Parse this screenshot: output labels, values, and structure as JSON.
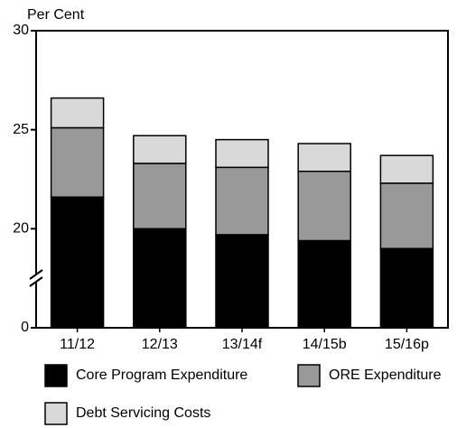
{
  "chart_data": {
    "type": "stacked_bar",
    "y_label": "Per Cent",
    "categories": [
      "11/12",
      "12/13",
      "13/14f",
      "14/15b",
      "15/16p"
    ],
    "series": [
      {
        "name": "Core Program Expenditure",
        "color": "#000000",
        "values": [
          21.6,
          20.0,
          19.7,
          19.4,
          19.0
        ]
      },
      {
        "name": "ORE Expenditure",
        "color": "#999999",
        "values": [
          3.5,
          3.3,
          3.4,
          3.5,
          3.3
        ]
      },
      {
        "name": "Debt Servicing Costs",
        "color": "#d9d9d9",
        "values": [
          1.5,
          1.4,
          1.4,
          1.4,
          1.4
        ]
      }
    ],
    "ylim": [
      0,
      30
    ],
    "yticks": [
      0,
      20,
      25,
      30
    ],
    "axis_break": true
  }
}
